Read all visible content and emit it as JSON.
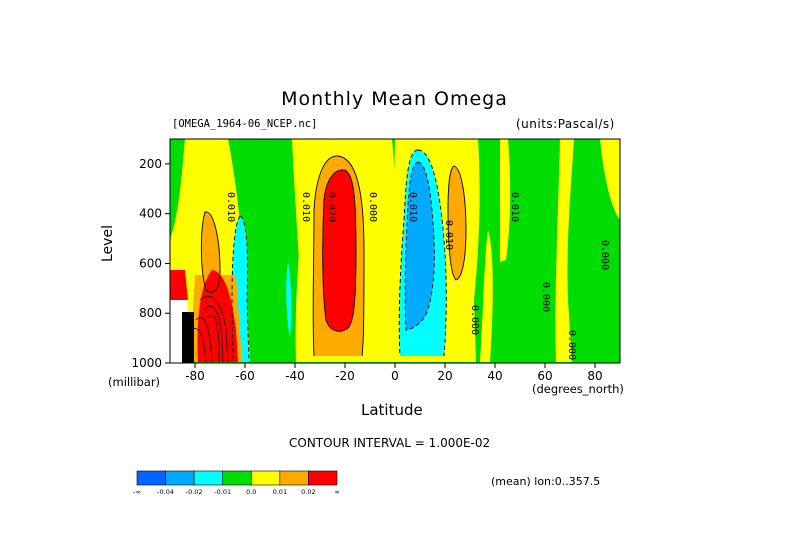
{
  "chart_data": {
    "type": "heatmap",
    "title": "Monthly Mean Omega",
    "subtitle_left": "[OMEGA_1964-06_NCEP.nc]",
    "subtitle_right": "(units:Pascal/s)",
    "xlabel": "Latitude",
    "x_units": "(degrees_north)",
    "ylabel": "Level",
    "y_units": "(millibar)",
    "xlim": [
      -90,
      90
    ],
    "ylim": [
      1000,
      100
    ],
    "x_ticks": [
      -80,
      -60,
      -40,
      -20,
      0,
      20,
      40,
      60,
      80
    ],
    "x_tick_labels": [
      "-80",
      "-60",
      "-40",
      "-20",
      "0",
      "20",
      "40",
      "60",
      "80"
    ],
    "y_ticks": [
      200,
      400,
      600,
      800,
      1000
    ],
    "y_tick_labels": [
      "200",
      "400",
      "600",
      "800",
      "1000"
    ],
    "contour_interval": "CONTOUR INTERVAL = 1.000E-02",
    "footer": "(mean) lon:0..357.5",
    "contour_labels": [
      "0.010",
      "0.010",
      "0.020",
      "0.000",
      "0.010",
      "0.010",
      "0.010",
      "0.000",
      "0.000",
      "0.000",
      "0.000"
    ],
    "colorbar": {
      "colors": [
        "#0066ff",
        "#00aaff",
        "#00ffff",
        "#00dd00",
        "#ffff00",
        "#ffaa00",
        "#ff0000"
      ],
      "labels": [
        "-∞",
        "-0.04",
        "-0.02",
        "-0.01",
        "0.0",
        "0.01",
        "0.02",
        "∞"
      ]
    },
    "features": [
      {
        "name": "southern-upper-positive",
        "lat": [
          -73,
          -65
        ],
        "level": [
          380,
          670
        ],
        "value": 0.01
      },
      {
        "name": "antarctic-strong-positive",
        "lat": [
          -78,
          -64
        ],
        "level": [
          710,
          1000
        ],
        "value": 0.04
      },
      {
        "name": "antarctic-negative",
        "lat": [
          -64,
          -58
        ],
        "level": [
          420,
          1000
        ],
        "value": -0.02
      },
      {
        "name": "midlat-negative",
        "lat": [
          -46,
          -44
        ],
        "level": [
          580,
          880
        ],
        "value": -0.02
      },
      {
        "name": "subtropical-positive-core",
        "lat": [
          -30,
          -17
        ],
        "level": [
          200,
          930
        ],
        "value": 0.02
      },
      {
        "name": "subtropical-positive-shell",
        "lat": [
          -37,
          -10
        ],
        "level": [
          130,
          980
        ],
        "value": 0.01
      },
      {
        "name": "itcz-negative-core",
        "lat": [
          4,
          16
        ],
        "level": [
          190,
          960
        ],
        "value": -0.04
      },
      {
        "name": "itcz-negative-shell",
        "lat": [
          0,
          22
        ],
        "level": [
          120,
          990
        ],
        "value": -0.02
      },
      {
        "name": "nh-subtropical-positive",
        "lat": [
          23,
          31
        ],
        "level": [
          180,
          650
        ],
        "value": 0.01
      }
    ]
  }
}
